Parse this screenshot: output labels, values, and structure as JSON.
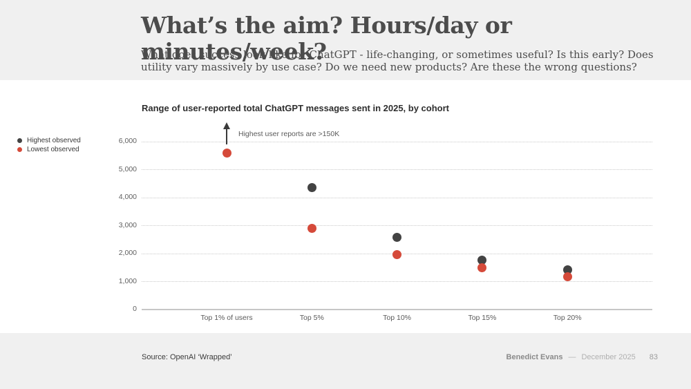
{
  "slide": {
    "title": "What’s the aim? Hours/day or minutes/week?",
    "subtitle": "What does success look like for ChatGPT - life-changing, or sometimes useful? Is this early? Does utility vary massively by use case? Do we need new products? Are these the wrong questions?"
  },
  "chart_data": {
    "type": "scatter",
    "title": "Range of user-reported total ChatGPT messages sent in 2025, by cohort",
    "categories": [
      "Top 1% of users",
      "Top 5%",
      "Top 10%",
      "Top 15%",
      "Top 20%"
    ],
    "series": [
      {
        "name": "Highest observed",
        "color": "#434343",
        "values": [
          null,
          4350,
          2575,
          1775,
          1425
        ]
      },
      {
        "name": "Lowest observed",
        "color": "#d54a3a",
        "values": [
          5600,
          2900,
          1975,
          1500,
          1175
        ]
      }
    ],
    "annotations": [
      {
        "text": "Highest user reports are >150K",
        "category": "Top 1% of users",
        "style": "up-arrow-offscale"
      }
    ],
    "xlabel": "",
    "ylabel": "",
    "ylim": [
      0,
      6000
    ],
    "yticks": [
      0,
      1000,
      2000,
      3000,
      4000,
      5000,
      6000
    ],
    "ytick_labels": [
      "0",
      "1,000",
      "2,000",
      "3,000",
      "4,000",
      "5,000",
      "6,000"
    ],
    "grid": "horizontal-dotted",
    "legend_position": "outside-left"
  },
  "footer": {
    "source": "Source: OpenAI ‘Wrapped’",
    "author": "Benedict Evans",
    "separator": "—",
    "date": "December 2025",
    "page": "83"
  }
}
